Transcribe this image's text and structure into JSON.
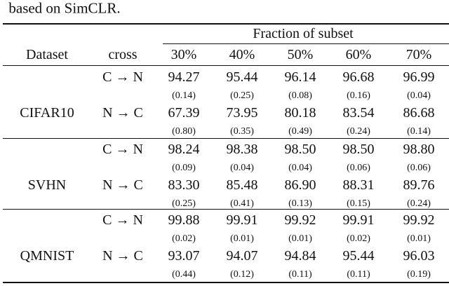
{
  "caption": "based on SimCLR.",
  "table": {
    "header": {
      "span": "Fraction of subset",
      "columns": [
        "Dataset",
        "cross",
        "30%",
        "40%",
        "50%",
        "60%",
        "70%"
      ]
    },
    "groups": [
      {
        "dataset": "CIFAR10",
        "rows": [
          {
            "cross": "C → N",
            "values": [
              "94.27",
              "95.44",
              "96.14",
              "96.68",
              "96.99"
            ],
            "stds": [
              "(0.14)",
              "(0.25)",
              "(0.08)",
              "(0.16)",
              "(0.04)"
            ]
          },
          {
            "cross": "N → C",
            "values": [
              "67.39",
              "73.95",
              "80.18",
              "83.54",
              "86.68"
            ],
            "stds": [
              "(0.80)",
              "(0.35)",
              "(0.49)",
              "(0.24)",
              "(0.14)"
            ]
          }
        ]
      },
      {
        "dataset": "SVHN",
        "rows": [
          {
            "cross": "C → N",
            "values": [
              "98.24",
              "98.38",
              "98.50",
              "98.50",
              "98.80"
            ],
            "stds": [
              "(0.09)",
              "(0.04)",
              "(0.04)",
              "(0.06)",
              "(0.06)"
            ]
          },
          {
            "cross": "N → C",
            "values": [
              "83.30",
              "85.48",
              "86.90",
              "88.31",
              "89.76"
            ],
            "stds": [
              "(0.25)",
              "(0.41)",
              "(0.13)",
              "(0.15)",
              "(0.24)"
            ]
          }
        ]
      },
      {
        "dataset": "QMNIST",
        "rows": [
          {
            "cross": "C → N",
            "values": [
              "99.88",
              "99.91",
              "99.92",
              "99.91",
              "99.92"
            ],
            "stds": [
              "(0.02)",
              "(0.01)",
              "(0.01)",
              "(0.02)",
              "(0.01)"
            ]
          },
          {
            "cross": "N → C",
            "values": [
              "93.07",
              "94.07",
              "94.84",
              "95.44",
              "96.03"
            ],
            "stds": [
              "(0.44)",
              "(0.12)",
              "(0.11)",
              "(0.11)",
              "(0.19)"
            ]
          }
        ]
      }
    ]
  }
}
